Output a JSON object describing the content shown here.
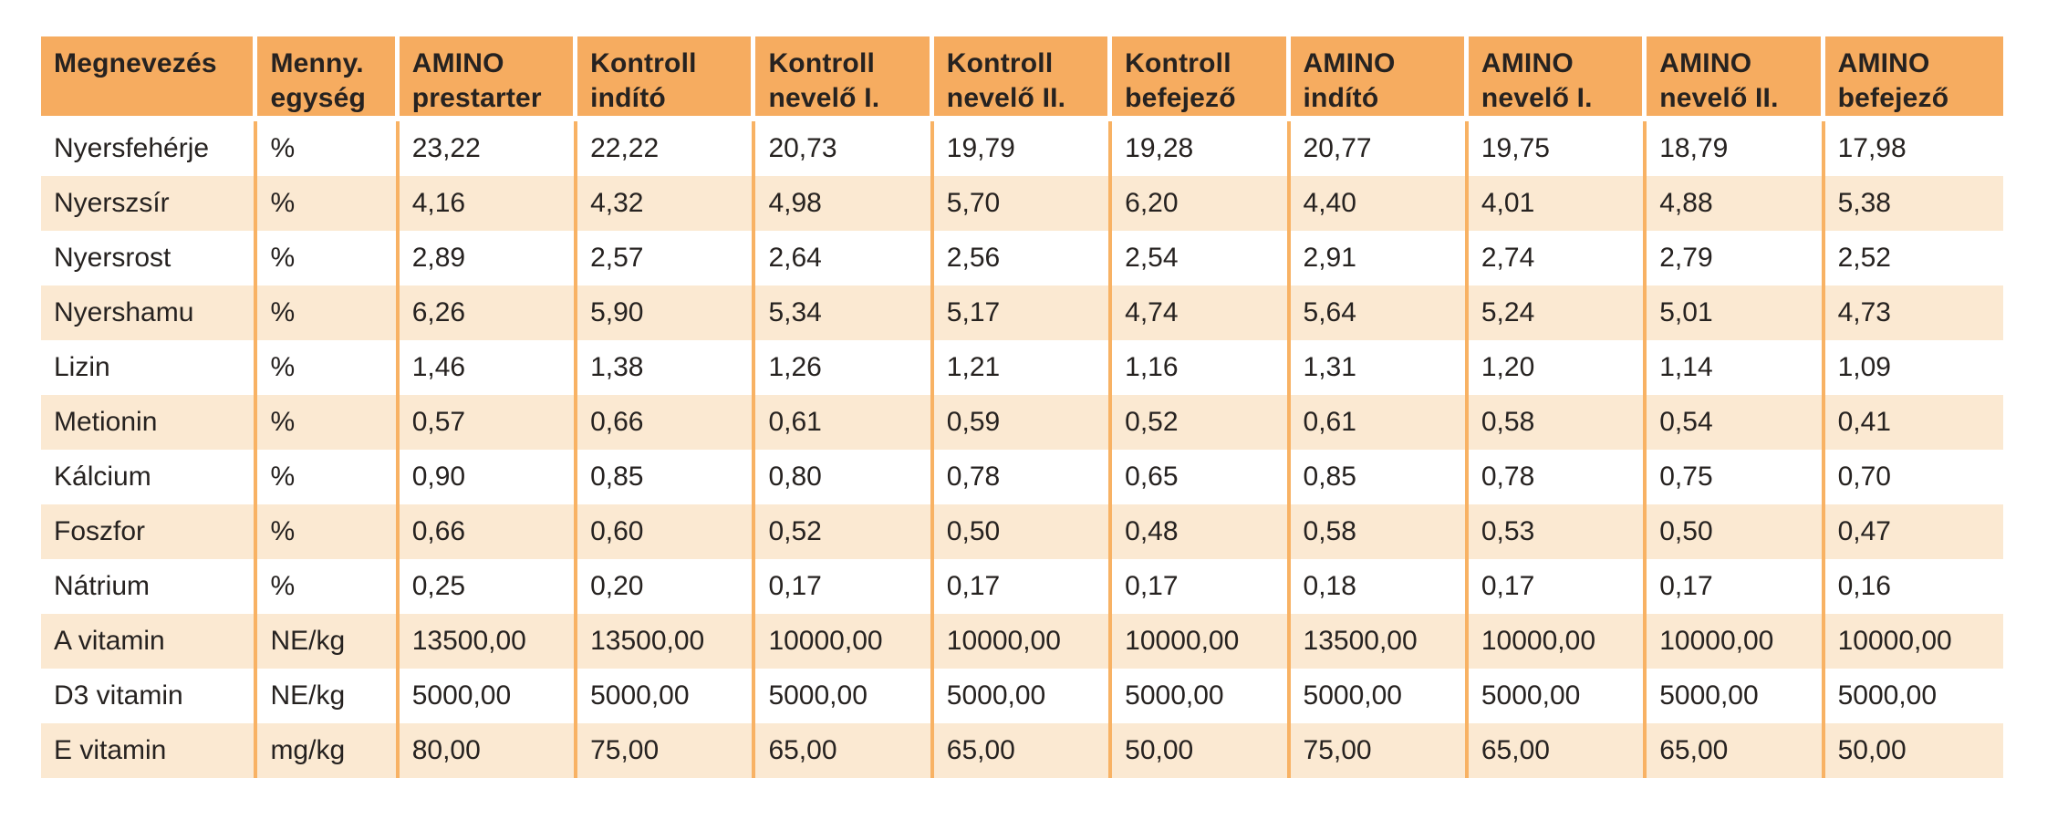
{
  "colors": {
    "header_bg": "#F6AC60",
    "stripe_bg": "#FBE9D2",
    "grid_line": "#F8B264",
    "text": "#262220",
    "header_divider": "#FFFFFF",
    "page_bg": "#FFFFFF"
  },
  "table": {
    "columns": [
      {
        "key": "megnevezes",
        "type": "name",
        "label": [
          "Megnevezés"
        ]
      },
      {
        "key": "egyseg",
        "type": "unit",
        "label": [
          "Menny.",
          "egység"
        ]
      },
      {
        "key": "amino-prestarter",
        "type": "data",
        "label": [
          "AMINO",
          "prestarter"
        ]
      },
      {
        "key": "kontroll-indito",
        "type": "data",
        "label": [
          "Kontroll",
          "indító"
        ]
      },
      {
        "key": "kontroll-nevelo-1",
        "type": "data",
        "label": [
          "Kontroll",
          "nevelő I."
        ]
      },
      {
        "key": "kontroll-nevelo-2",
        "type": "data",
        "label": [
          "Kontroll",
          "nevelő II."
        ]
      },
      {
        "key": "kontroll-befejezo",
        "type": "data",
        "label": [
          "Kontroll",
          "befejező"
        ]
      },
      {
        "key": "amino-indito",
        "type": "data",
        "label": [
          "AMINO",
          "indító"
        ]
      },
      {
        "key": "amino-nevelo-1",
        "type": "data",
        "label": [
          "AMINO",
          "nevelő I."
        ]
      },
      {
        "key": "amino-nevelo-2",
        "type": "data",
        "label": [
          "AMINO",
          "nevelő II."
        ]
      },
      {
        "key": "amino-befejezo",
        "type": "data",
        "label": [
          "AMINO",
          "befejező"
        ]
      }
    ],
    "rows": [
      {
        "megnevezes": "Nyersfehérje",
        "egyseg": "%",
        "values": [
          "23,22",
          "22,22",
          "20,73",
          "19,79",
          "19,28",
          "20,77",
          "19,75",
          "18,79",
          "17,98"
        ]
      },
      {
        "megnevezes": "Nyerszsír",
        "egyseg": "%",
        "values": [
          "4,16",
          "4,32",
          "4,98",
          "5,70",
          "6,20",
          "4,40",
          "4,01",
          "4,88",
          "5,38"
        ]
      },
      {
        "megnevezes": "Nyersrost",
        "egyseg": "%",
        "values": [
          "2,89",
          "2,57",
          "2,64",
          "2,56",
          "2,54",
          "2,91",
          "2,74",
          "2,79",
          "2,52"
        ]
      },
      {
        "megnevezes": "Nyershamu",
        "egyseg": "%",
        "values": [
          "6,26",
          "5,90",
          "5,34",
          "5,17",
          "4,74",
          "5,64",
          "5,24",
          "5,01",
          "4,73"
        ]
      },
      {
        "megnevezes": "Lizin",
        "egyseg": "%",
        "values": [
          "1,46",
          "1,38",
          "1,26",
          "1,21",
          "1,16",
          "1,31",
          "1,20",
          "1,14",
          "1,09"
        ]
      },
      {
        "megnevezes": "Metionin",
        "egyseg": "%",
        "values": [
          "0,57",
          "0,66",
          "0,61",
          "0,59",
          "0,52",
          "0,61",
          "0,58",
          "0,54",
          "0,41"
        ]
      },
      {
        "megnevezes": "Kálcium",
        "egyseg": "%",
        "values": [
          "0,90",
          "0,85",
          "0,80",
          "0,78",
          "0,65",
          "0,85",
          "0,78",
          "0,75",
          "0,70"
        ]
      },
      {
        "megnevezes": "Foszfor",
        "egyseg": "%",
        "values": [
          "0,66",
          "0,60",
          "0,52",
          "0,50",
          "0,48",
          "0,58",
          "0,53",
          "0,50",
          "0,47"
        ]
      },
      {
        "megnevezes": "Nátrium",
        "egyseg": "%",
        "values": [
          "0,25",
          "0,20",
          "0,17",
          "0,17",
          "0,17",
          "0,18",
          "0,17",
          "0,17",
          "0,16"
        ]
      },
      {
        "megnevezes": "A vitamin",
        "egyseg": "NE/kg",
        "values": [
          "13500,00",
          "13500,00",
          "10000,00",
          "10000,00",
          "10000,00",
          "13500,00",
          "10000,00",
          "10000,00",
          "10000,00"
        ]
      },
      {
        "megnevezes": "D3 vitamin",
        "egyseg": "NE/kg",
        "values": [
          "5000,00",
          "5000,00",
          "5000,00",
          "5000,00",
          "5000,00",
          "5000,00",
          "5000,00",
          "5000,00",
          "5000,00"
        ]
      },
      {
        "megnevezes": "E vitamin",
        "egyseg": "mg/kg",
        "values": [
          "80,00",
          "75,00",
          "65,00",
          "65,00",
          "50,00",
          "75,00",
          "65,00",
          "65,00",
          "50,00"
        ]
      }
    ]
  }
}
